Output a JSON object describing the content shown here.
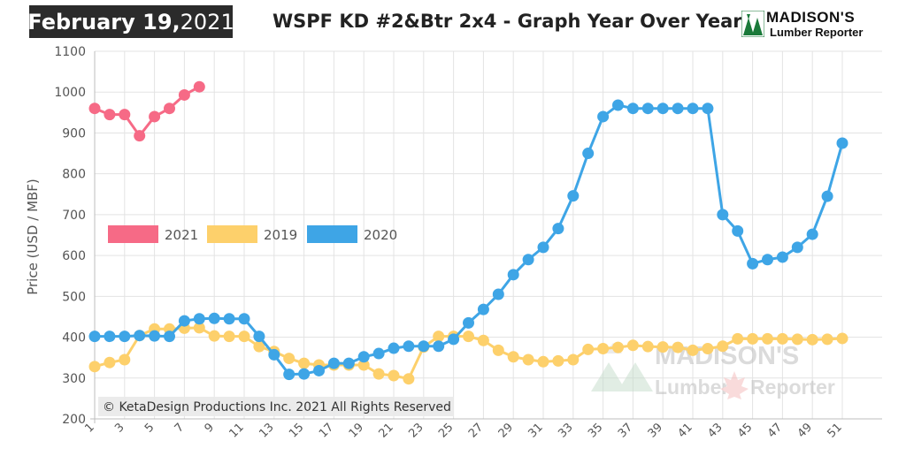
{
  "header": {
    "date_main": "February 19,",
    "date_year": " 2021",
    "title": "WSPF KD #2&Btr 2x4 - Graph Year Over Year"
  },
  "logo": {
    "line1": "MADISON'S",
    "line2": "Lumber Reporter"
  },
  "copyright": "© KetaDesign Productions Inc. 2021 All Rights Reserved",
  "watermark": {
    "line1": "MADISON'S",
    "line2": "Lumber",
    "line3": "Reporter"
  },
  "chart_data": {
    "type": "line",
    "ylabel": "Price (USD / MBF)",
    "xlabel": "",
    "ylim": [
      200,
      1100
    ],
    "yticks": [
      200,
      300,
      400,
      500,
      600,
      700,
      800,
      900,
      1000,
      1100
    ],
    "xlim": [
      1,
      52
    ],
    "xticks": [
      1,
      3,
      5,
      7,
      9,
      11,
      13,
      15,
      17,
      19,
      21,
      23,
      25,
      27,
      29,
      31,
      33,
      35,
      37,
      39,
      41,
      43,
      45,
      47,
      49,
      51
    ],
    "grid": true,
    "legend_position": "middle-left",
    "series": [
      {
        "name": "2021",
        "color": "#f66a86",
        "values": [
          960,
          945,
          945,
          893,
          940,
          960,
          993,
          1013
        ]
      },
      {
        "name": "2019",
        "color": "#fdd06b",
        "values": [
          328,
          338,
          345,
          404,
          420,
          420,
          422,
          423,
          403,
          402,
          402,
          377,
          365,
          348,
          336,
          332,
          332,
          332,
          332,
          310,
          306,
          298,
          376,
          402,
          402,
          402,
          392,
          368,
          352,
          345,
          340,
          342,
          345,
          370,
          372,
          375,
          380,
          377,
          376,
          375,
          368,
          372,
          378,
          396,
          396,
          396,
          396,
          395,
          394,
          395,
          397
        ]
      },
      {
        "name": "2020",
        "color": "#3ea5e6",
        "values": [
          402,
          402,
          402,
          404,
          403,
          402,
          440,
          445,
          446,
          445,
          445,
          402,
          357,
          309,
          310,
          318,
          336,
          336,
          352,
          360,
          373,
          378,
          378,
          378,
          395,
          435,
          468,
          505,
          553,
          590,
          620,
          666,
          746,
          850,
          940,
          968,
          960,
          960,
          960,
          960,
          960,
          960,
          700,
          660,
          580,
          590,
          596,
          620,
          652,
          745,
          875
        ]
      }
    ],
    "legend": [
      {
        "label": "2021",
        "color": "#f66a86"
      },
      {
        "label": "2019",
        "color": "#fdd06b"
      },
      {
        "label": "2020",
        "color": "#3ea5e6"
      }
    ]
  }
}
